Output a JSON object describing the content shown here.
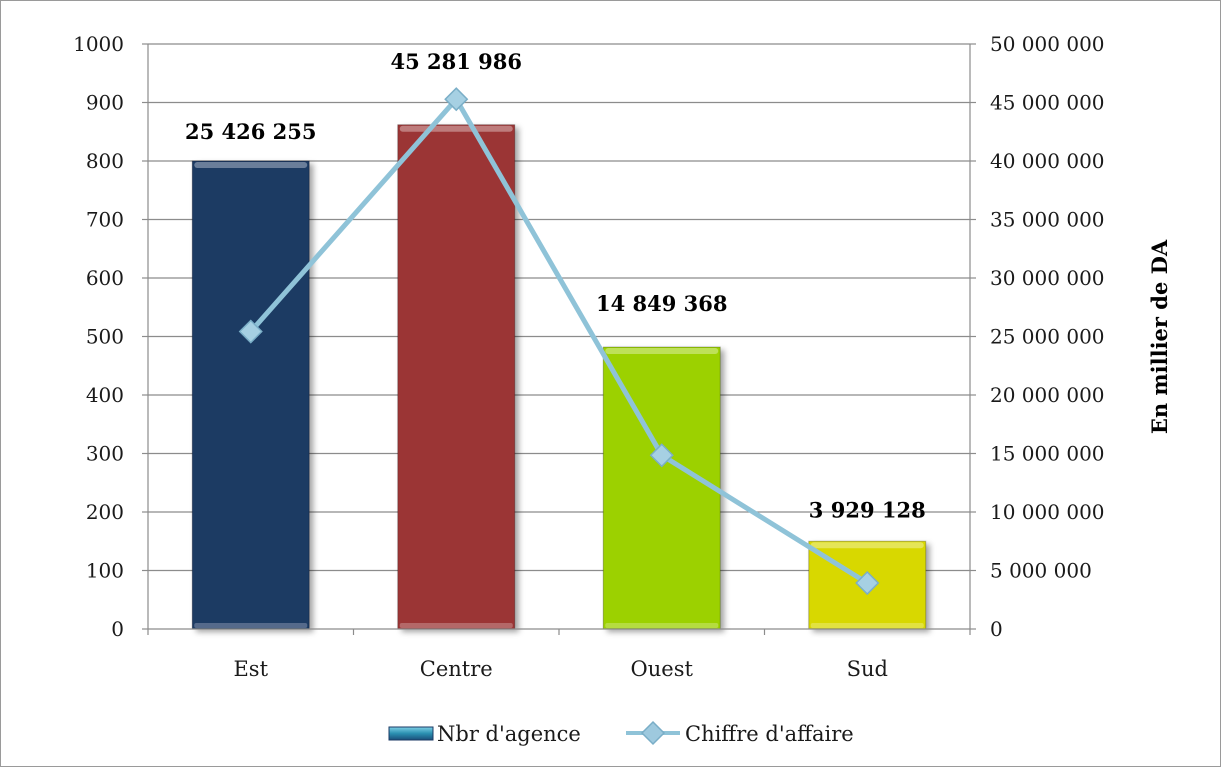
{
  "chart_data": {
    "type": "bar",
    "categories": [
      "Est",
      "Centre",
      "Ouest",
      "Sud"
    ],
    "series": [
      {
        "name": "Nbr d'agence",
        "type": "bar",
        "axis": "left",
        "values": [
          800,
          862,
          482,
          150
        ],
        "colors": [
          "#1b3a64",
          "#9b3636",
          "#9cd100",
          "#d8d800"
        ]
      },
      {
        "name": "Chiffre d'affaire",
        "type": "line",
        "axis": "right",
        "values": [
          25426255,
          45281986,
          14849368,
          3929128
        ],
        "data_labels": [
          "25 426 255",
          "45 281 986",
          "14 849 368",
          "3 929 128"
        ],
        "color": "#8fc3d8"
      }
    ],
    "left_axis": {
      "ylim": [
        0,
        1000
      ],
      "ticks": [
        "0",
        "100",
        "200",
        "300",
        "400",
        "500",
        "600",
        "700",
        "800",
        "900",
        "1000"
      ]
    },
    "right_axis": {
      "ylim": [
        0,
        50000000
      ],
      "label": "En millier de DA",
      "ticks": [
        "0",
        "5 000 000",
        "10 000 000",
        "15 000 000",
        "20 000 000",
        "25 000 000",
        "30 000 000",
        "35 000 000",
        "40 000 000",
        "45 000 000",
        "50 000 000"
      ]
    },
    "grid": true,
    "legend": "bottom"
  }
}
